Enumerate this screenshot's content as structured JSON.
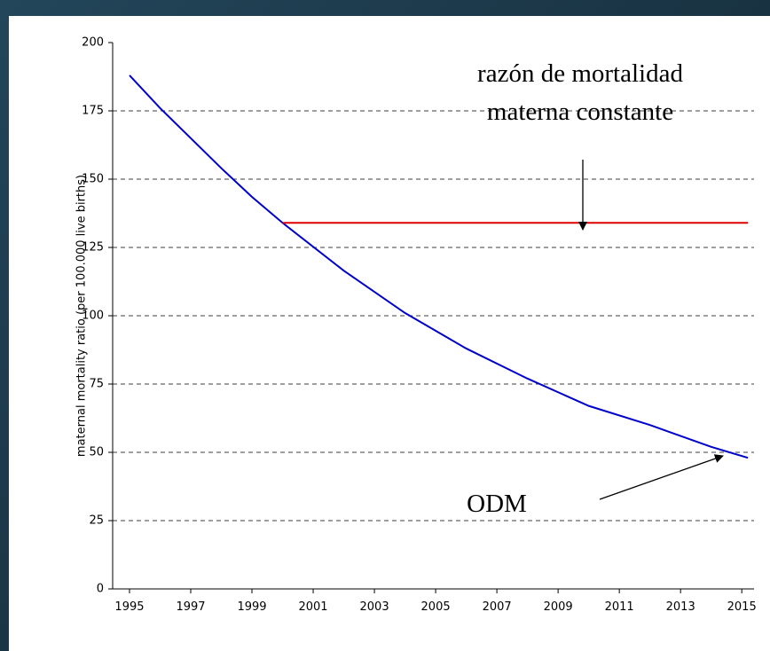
{
  "chart_data": {
    "type": "line",
    "y_label": "maternal mortality ratio (per 100.000 live births)",
    "xlim": [
      1994.45,
      2015.4
    ],
    "xticks": [
      1995,
      1997,
      1999,
      2001,
      2003,
      2005,
      2007,
      2009,
      2011,
      2013,
      2015
    ],
    "ylim": [
      0,
      200
    ],
    "yticks": [
      0,
      25,
      50,
      75,
      100,
      125,
      150,
      175,
      200
    ],
    "grid": true,
    "series": [
      {
        "color": "#0000cc",
        "x": [
          1995,
          1996,
          1998,
          1999,
          2000,
          2002,
          2004,
          2006,
          2008,
          2010,
          2012,
          2014,
          2015.2
        ],
        "values": [
          188,
          176,
          154,
          143.5,
          134,
          116.5,
          101,
          88,
          77,
          67,
          60,
          52,
          48
        ]
      },
      {
        "color": "#dd0000",
        "x": [
          2000,
          2015.2
        ],
        "values": [
          134,
          134
        ]
      }
    ],
    "annotations": [
      {
        "lines": [
          "razón de mortalidad",
          "materna constante"
        ]
      },
      {
        "lines": [
          "ODM"
        ]
      }
    ]
  }
}
